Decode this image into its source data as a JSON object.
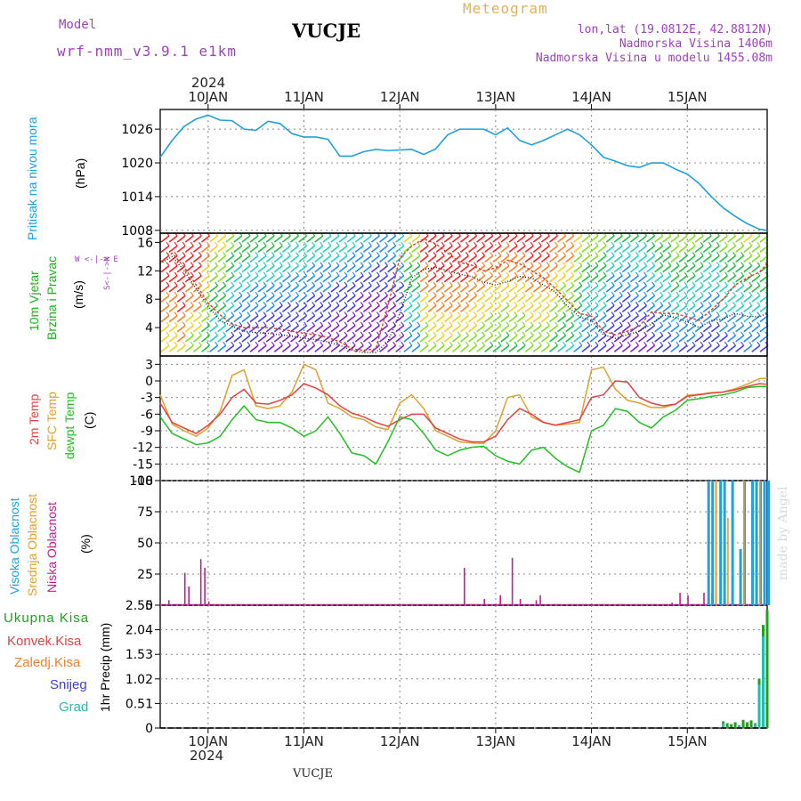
{
  "header": {
    "model_label": "Model",
    "model_value": "wrf-nmm_v3.9.1 e1km",
    "station_title": "VUCJE",
    "meteogram_label": "Meteogram",
    "lonlat": "lon,lat (19.0812E, 42.8812N)",
    "altitude": "Nadmorska Visina 1406m",
    "model_altitude": "Nadmorska Visina u modelu 1455.08m",
    "year_top": "2024",
    "year_bottom": "2024",
    "footer_station": "VUCJE",
    "credit": "made by Angel"
  },
  "colors": {
    "pressure": "#1ea0e0",
    "wind_label": "#20b020",
    "temp2m": "#e84040",
    "sfc_temp": "#e0a030",
    "dewpoint": "#20c020",
    "high_cloud": "#20a0e0",
    "mid_cloud": "#e0a030",
    "low_cloud": "#c02090",
    "precip_total": "#20a020",
    "precip_conv": "#e84040",
    "precip_frozen": "#f08030",
    "precip_snow": "#4040e0",
    "precip_grad": "#20c0b0",
    "model_label": "#a040c0"
  },
  "labels": {
    "pressure_title": "Pritisak na nivou mora",
    "pressure_unit": "(hPa)",
    "wind_title_1": "10m Vjetar",
    "wind_title_2": "Brzina i Pravac",
    "wind_unit": "(m/s)",
    "wind_legend": "W <-|-> E",
    "wind_legend_ns": "S<-|->N",
    "temp_title_1": "2m Temp",
    "temp_title_2": "SFC Temp",
    "temp_title_3": "dewpt Temp",
    "temp_unit": "(C)",
    "cloud_title_1": "Visoka Oblacnost",
    "cloud_title_2": "Srednja Oblacnost",
    "cloud_title_3": "Niska Oblacnost",
    "cloud_unit": "(%)",
    "precip_1": "Ukupna Kisa",
    "precip_2": "Konvek.Kisa",
    "precip_3": "Zaledj.Kisa",
    "precip_4": "Snijeg",
    "precip_5": "Grad",
    "precip_unit": "1hr Precip (mm)"
  },
  "chart_data": [
    {
      "type": "line",
      "panel": "pressure",
      "ylabel": "(hPa)",
      "yticks": [
        "1008",
        "1014",
        "1020",
        "1026"
      ],
      "ylim": [
        1007.5,
        1029.5
      ],
      "x_hours": [
        0,
        3,
        6,
        9,
        12,
        15,
        18,
        21,
        24,
        27,
        30,
        33,
        36,
        39,
        42,
        45,
        48,
        51,
        54,
        57,
        60,
        63,
        66,
        69,
        72,
        75,
        78,
        81,
        84,
        87,
        90,
        93,
        96,
        99,
        102,
        105,
        108,
        111,
        114,
        117,
        120,
        123,
        126,
        129,
        132,
        135,
        138,
        141,
        144,
        147,
        150,
        152
      ],
      "series": [
        {
          "values": [
            1021,
            1024,
            1026.5,
            1027.8,
            1028.5,
            1027.6,
            1027.5,
            1026,
            1025.8,
            1027.4,
            1027,
            1025.2,
            1024.6,
            1024.6,
            1024.2,
            1021.2,
            1021.2,
            1022,
            1022.4,
            1022.2,
            1022.3,
            1022.4,
            1021.5,
            1022.5,
            1025,
            1026,
            1026,
            1026,
            1025,
            1026.2,
            1024,
            1023.2,
            1024,
            1025,
            1026,
            1025,
            1023.2,
            1021,
            1020.3,
            1019.5,
            1019.2,
            1020,
            1020,
            1018.9,
            1018,
            1016.3,
            1014,
            1012,
            1010.5,
            1009.2,
            1008.2,
            1008
          ]
        }
      ]
    },
    {
      "type": "line",
      "panel": "wind",
      "ylabel": "(m/s)",
      "yticks": [
        "4",
        "8",
        "12",
        "16"
      ],
      "ylim": [
        0,
        17.3
      ],
      "x_hours": [
        0,
        3,
        6,
        9,
        12,
        15,
        18,
        21,
        24,
        27,
        30,
        33,
        36,
        39,
        42,
        45,
        48,
        51,
        54,
        57,
        60,
        63,
        66,
        69,
        72,
        75,
        78,
        81,
        84,
        87,
        90,
        93,
        96,
        99,
        102,
        105,
        108,
        111,
        114,
        117,
        120,
        123,
        126,
        129,
        132,
        135,
        138,
        141,
        144,
        147,
        150,
        152
      ],
      "series": [
        {
          "name": "avg",
          "values": [
            13,
            14,
            12,
            9.5,
            7,
            5,
            4.2,
            3.5,
            3.3,
            3.2,
            3,
            2.8,
            2.5,
            2.3,
            2,
            1.5,
            0.8,
            0.5,
            0.5,
            2,
            6,
            11,
            12.2,
            12.5,
            12,
            11.5,
            11.2,
            10.4,
            10,
            10.5,
            11.2,
            11,
            10,
            9,
            7,
            5.5,
            5,
            3,
            2.5,
            3,
            3.5,
            4.5,
            5.8,
            5.4,
            4.8,
            4,
            5,
            5.2,
            6,
            5.6,
            5.5,
            6
          ]
        },
        {
          "name": "gust",
          "values": [
            13.2,
            14.5,
            12.5,
            10,
            7.5,
            5.8,
            4.5,
            4,
            4,
            4,
            3.8,
            3.5,
            3.2,
            3,
            2.6,
            2,
            1,
            0.8,
            1,
            7,
            13.8,
            15.5,
            16.5,
            15.8,
            14.5,
            13.2,
            12.8,
            12,
            12.4,
            13.5,
            13,
            12,
            11,
            9.5,
            7.8,
            6,
            5.6,
            3.5,
            3,
            3.5,
            4.2,
            6.2,
            6,
            6,
            5.5,
            5,
            6.5,
            8,
            10,
            11,
            11.8,
            13
          ]
        }
      ]
    },
    {
      "type": "line",
      "panel": "temperature",
      "ylabel": "(C)",
      "yticks": [
        "-18",
        "-15",
        "-12",
        "-9",
        "-6",
        "-3",
        "0",
        "3"
      ],
      "ylim": [
        -18,
        4.5
      ],
      "x_hours": [
        0,
        3,
        6,
        9,
        12,
        15,
        18,
        21,
        24,
        27,
        30,
        33,
        36,
        39,
        42,
        45,
        48,
        51,
        54,
        57,
        60,
        63,
        66,
        69,
        72,
        75,
        78,
        81,
        84,
        87,
        90,
        93,
        96,
        99,
        102,
        105,
        108,
        111,
        114,
        117,
        120,
        123,
        126,
        129,
        132,
        135,
        138,
        141,
        144,
        147,
        150,
        152
      ],
      "series": [
        {
          "name": "2m Temp",
          "values": [
            -4,
            -7.5,
            -8.5,
            -9.5,
            -8,
            -6,
            -3,
            -1.5,
            -4,
            -4.2,
            -3.5,
            -2.5,
            -0.5,
            -1.3,
            -2.5,
            -4.5,
            -5.8,
            -6.5,
            -7.5,
            -8.2,
            -7,
            -6,
            -6,
            -8.5,
            -9.5,
            -10.5,
            -11,
            -11,
            -10,
            -7,
            -5,
            -6,
            -7.5,
            -8,
            -7.5,
            -7,
            -3,
            -2.5,
            0,
            -0.2,
            -3,
            -4,
            -4.5,
            -4.2,
            -2.8,
            -2.5,
            -2.2,
            -2,
            -1.6,
            -1,
            -0.5,
            -0.6
          ]
        },
        {
          "name": "SFC Temp",
          "values": [
            -2.5,
            -7.8,
            -9,
            -10,
            -8.5,
            -5.5,
            1,
            2,
            -4.5,
            -5,
            -4.5,
            -2,
            3,
            2,
            -4,
            -5,
            -6.5,
            -7,
            -8.3,
            -8.8,
            -4,
            -2.5,
            -5,
            -9,
            -10,
            -11,
            -11.2,
            -11.3,
            -9,
            -3,
            -2.5,
            -6.5,
            -7.5,
            -8,
            -7.8,
            -7.5,
            2,
            2.5,
            -1.5,
            -3.5,
            -4,
            -4.8,
            -4.8,
            -4.2,
            -2.6,
            -2.4,
            -2.1,
            -2,
            -1.4,
            -0.6,
            0.4,
            0.5
          ]
        },
        {
          "name": "dewpt Temp",
          "values": [
            -6.5,
            -9.5,
            -10.5,
            -11.5,
            -11.2,
            -10,
            -7,
            -4.5,
            -7,
            -7.5,
            -7.5,
            -8.5,
            -10,
            -9,
            -6.5,
            -9.5,
            -13,
            -13.5,
            -15,
            -11,
            -6.5,
            -7,
            -9.5,
            -12.5,
            -13.5,
            -12.5,
            -12,
            -11.8,
            -13.5,
            -14.5,
            -15,
            -12.5,
            -12,
            -14,
            -15.5,
            -16.5,
            -9,
            -8,
            -5,
            -5.5,
            -7.5,
            -8.5,
            -6.5,
            -5.3,
            -3.5,
            -3.2,
            -2.8,
            -2.5,
            -2,
            -1.2,
            -1,
            -1
          ]
        }
      ]
    },
    {
      "type": "bar",
      "panel": "clouds",
      "ylabel": "(%)",
      "yticks": [
        "0",
        "25",
        "50",
        "75",
        "100"
      ],
      "ylim": [
        0,
        100
      ],
      "series": [
        {
          "name": "Niska Oblacnost",
          "x_hours": [
            2,
            6,
            7,
            10,
            11,
            12,
            76,
            81,
            85,
            88,
            90,
            94,
            95,
            128,
            130,
            132,
            136,
            138,
            139
          ],
          "values": [
            4,
            26,
            15,
            37,
            30,
            3,
            30,
            5,
            8,
            38,
            5,
            4,
            8,
            2,
            10,
            8,
            10,
            10,
            100
          ]
        },
        {
          "name": "Visoka Oblacnost",
          "x_hours": [
            137,
            138,
            140,
            141,
            143,
            145,
            146,
            148,
            149,
            150,
            151,
            152
          ],
          "values": [
            100,
            100,
            100,
            100,
            100,
            45,
            100,
            100,
            100,
            100,
            100,
            100
          ]
        },
        {
          "name": "Srednja Oblacnost",
          "x_hours": [
            139,
            142,
            146,
            150
          ],
          "values": [
            100,
            70,
            100,
            100
          ]
        }
      ]
    },
    {
      "type": "bar",
      "panel": "precip",
      "ylabel": "1hr Precip (mm)",
      "yticks": [
        "0",
        "0.51",
        "1.02",
        "1.53",
        "2.04",
        "2.55"
      ],
      "ylim": [
        0,
        2.55
      ],
      "series": [
        {
          "name": "Ukupna Kisa",
          "x_hours": [
            141,
            142,
            143,
            144,
            145,
            146,
            147,
            148,
            149,
            150,
            151,
            152
          ],
          "values": [
            0.14,
            0.1,
            0.08,
            0.12,
            0.06,
            0.17,
            0.12,
            0.16,
            0.1,
            1.02,
            2.14,
            2.45
          ]
        },
        {
          "name": "Grad",
          "x_hours": [
            141,
            145,
            149,
            150,
            151
          ],
          "values": [
            0.1,
            0.05,
            0.08,
            0.9,
            1.9
          ]
        }
      ]
    }
  ],
  "x_axis": {
    "day_labels": [
      "10JAN",
      "11JAN",
      "12JAN",
      "13JAN",
      "14JAN",
      "15JAN"
    ],
    "day_hours": [
      12,
      36,
      60,
      84,
      108,
      132
    ]
  }
}
